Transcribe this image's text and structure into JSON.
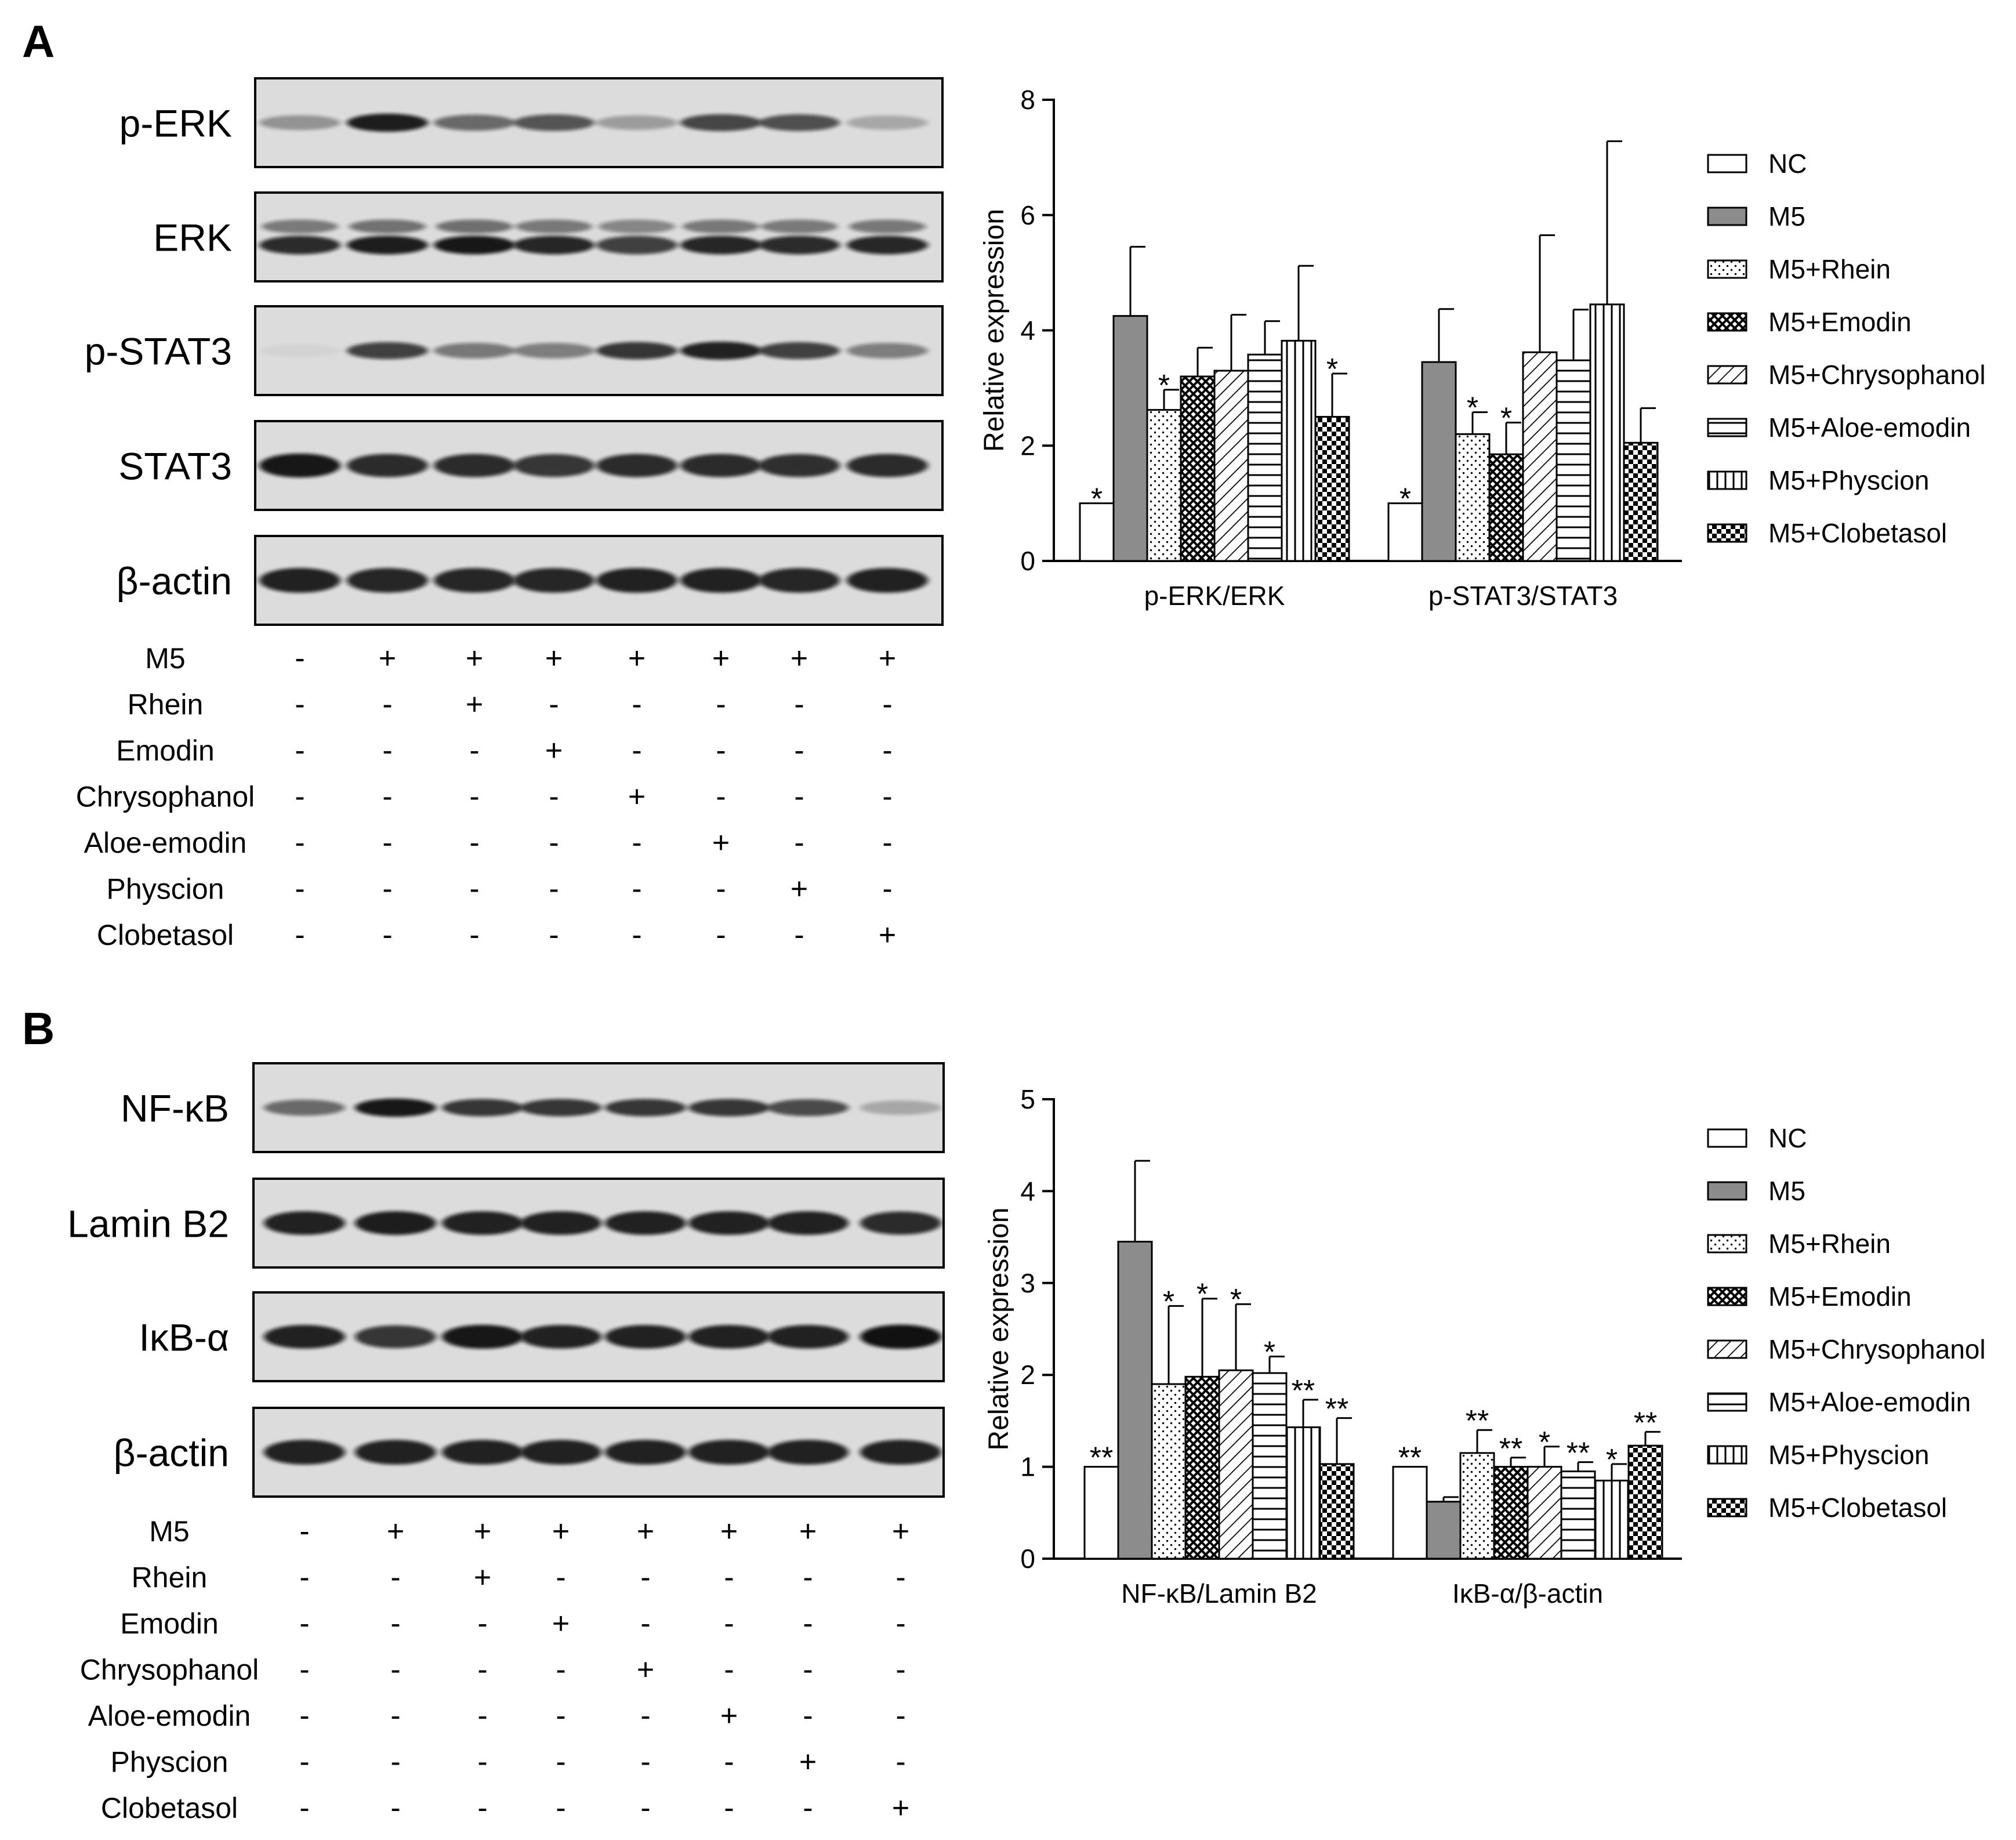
{
  "panels": [
    {
      "letter": "A",
      "blots": [
        "p-ERK",
        "ERK",
        "p-STAT3",
        "STAT3",
        "β-actin"
      ],
      "bands": [
        [
          0.35,
          0.92,
          0.55,
          0.65,
          0.3,
          0.72,
          0.68,
          0.25
        ],
        [
          0.85,
          0.92,
          0.95,
          0.88,
          0.75,
          0.88,
          0.85,
          0.87
        ],
        [
          0.04,
          0.75,
          0.48,
          0.45,
          0.8,
          0.9,
          0.75,
          0.45
        ],
        [
          0.95,
          0.85,
          0.85,
          0.8,
          0.85,
          0.85,
          0.83,
          0.85
        ],
        [
          0.9,
          0.88,
          0.88,
          0.88,
          0.9,
          0.9,
          0.88,
          0.9
        ]
      ],
      "treatments": [
        {
          "label": "M5",
          "signs": [
            "-",
            "+",
            "+",
            "+",
            "+",
            "+",
            "+",
            "+"
          ]
        },
        {
          "label": "Rhein",
          "signs": [
            "-",
            "-",
            "+",
            "-",
            "-",
            "-",
            "-",
            "-"
          ]
        },
        {
          "label": "Emodin",
          "signs": [
            "-",
            "-",
            "-",
            "+",
            "-",
            "-",
            "-",
            "-"
          ]
        },
        {
          "label": "Chrysophanol",
          "signs": [
            "-",
            "-",
            "-",
            "-",
            "+",
            "-",
            "-",
            "-"
          ]
        },
        {
          "label": "Aloe-emodin",
          "signs": [
            "-",
            "-",
            "-",
            "-",
            "-",
            "+",
            "-",
            "-"
          ]
        },
        {
          "label": "Physcion",
          "signs": [
            "-",
            "-",
            "-",
            "-",
            "-",
            "-",
            "+",
            "-"
          ]
        },
        {
          "label": "Clobetasol",
          "signs": [
            "-",
            "-",
            "-",
            "-",
            "-",
            "-",
            "-",
            "+"
          ]
        }
      ]
    },
    {
      "letter": "B",
      "blots": [
        "NF-κB",
        "Lamin B2",
        "IκB-α",
        "β-actin"
      ],
      "bands": [
        [
          0.55,
          0.95,
          0.8,
          0.8,
          0.8,
          0.8,
          0.7,
          0.25
        ],
        [
          0.9,
          0.92,
          0.9,
          0.9,
          0.9,
          0.9,
          0.9,
          0.85
        ],
        [
          0.9,
          0.8,
          0.95,
          0.9,
          0.9,
          0.9,
          0.9,
          0.98
        ],
        [
          0.9,
          0.9,
          0.9,
          0.9,
          0.9,
          0.9,
          0.9,
          0.9
        ]
      ],
      "treatments": [
        {
          "label": "M5",
          "signs": [
            "-",
            "+",
            "+",
            "+",
            "+",
            "+",
            "+",
            "+"
          ]
        },
        {
          "label": "Rhein",
          "signs": [
            "-",
            "-",
            "+",
            "-",
            "-",
            "-",
            "-",
            "-"
          ]
        },
        {
          "label": "Emodin",
          "signs": [
            "-",
            "-",
            "-",
            "+",
            "-",
            "-",
            "-",
            "-"
          ]
        },
        {
          "label": "Chrysophanol",
          "signs": [
            "-",
            "-",
            "-",
            "-",
            "+",
            "-",
            "-",
            "-"
          ]
        },
        {
          "label": "Aloe-emodin",
          "signs": [
            "-",
            "-",
            "-",
            "-",
            "-",
            "+",
            "-",
            "-"
          ]
        },
        {
          "label": "Physcion",
          "signs": [
            "-",
            "-",
            "-",
            "-",
            "-",
            "-",
            "+",
            "-"
          ]
        },
        {
          "label": "Clobetasol",
          "signs": [
            "-",
            "-",
            "-",
            "-",
            "-",
            "-",
            "-",
            "+"
          ]
        }
      ]
    }
  ],
  "chart_data": [
    {
      "type": "bar",
      "title": "",
      "xlabel": "",
      "ylabel": "Relative expression",
      "ylim": [
        0,
        8
      ],
      "yticks": [
        "0",
        "2",
        "4",
        "6",
        "8"
      ],
      "categories": [
        "p-ERK/ERK",
        "p-STAT3/STAT3"
      ],
      "legend_position": "right",
      "series": [
        {
          "name": "NC",
          "pattern": "white",
          "values": [
            1.0,
            1.0
          ],
          "errors": [
            0,
            0
          ],
          "sig": [
            "*",
            "*"
          ]
        },
        {
          "name": "M5",
          "pattern": "gray",
          "values": [
            4.25,
            3.45
          ],
          "errors": [
            1.2,
            0.92
          ],
          "sig": [
            "",
            ""
          ]
        },
        {
          "name": "M5+Rhein",
          "pattern": "dots",
          "values": [
            2.62,
            2.2
          ],
          "errors": [
            0.35,
            0.38
          ],
          "sig": [
            "*",
            "*"
          ]
        },
        {
          "name": "M5+Emodin",
          "pattern": "crosshatch",
          "values": [
            3.2,
            1.85
          ],
          "errors": [
            0.5,
            0.55
          ],
          "sig": [
            "",
            "*"
          ]
        },
        {
          "name": "M5+Chrysophanol",
          "pattern": "diagonal",
          "values": [
            3.3,
            3.62
          ],
          "errors": [
            0.97,
            2.03
          ],
          "sig": [
            "",
            ""
          ]
        },
        {
          "name": "M5+Aloe-emodin",
          "pattern": "horizontal",
          "values": [
            3.58,
            3.48
          ],
          "errors": [
            0.58,
            0.88
          ],
          "sig": [
            "",
            ""
          ]
        },
        {
          "name": "M5+Physcion",
          "pattern": "vertical",
          "values": [
            3.82,
            4.45
          ],
          "errors": [
            1.3,
            2.83
          ],
          "sig": [
            "",
            ""
          ]
        },
        {
          "name": "M5+Clobetasol",
          "pattern": "checker",
          "values": [
            2.5,
            2.05
          ],
          "errors": [
            0.75,
            0.6
          ],
          "sig": [
            "*",
            ""
          ]
        }
      ]
    },
    {
      "type": "bar",
      "title": "",
      "xlabel": "",
      "ylabel": "Relative expression",
      "ylim": [
        0,
        5
      ],
      "yticks": [
        "0",
        "1",
        "2",
        "3",
        "4",
        "5"
      ],
      "categories": [
        "NF-κB/Lamin B2",
        "IκB-α/β-actin"
      ],
      "legend_position": "right",
      "series": [
        {
          "name": "NC",
          "pattern": "white",
          "values": [
            1.0,
            1.0
          ],
          "errors": [
            0,
            0
          ],
          "sig": [
            "**",
            "**"
          ]
        },
        {
          "name": "M5",
          "pattern": "gray",
          "values": [
            3.45,
            0.62
          ],
          "errors": [
            0.88,
            0.05
          ],
          "sig": [
            "",
            ""
          ]
        },
        {
          "name": "M5+Rhein",
          "pattern": "dots",
          "values": [
            1.9,
            1.15
          ],
          "errors": [
            0.85,
            0.25
          ],
          "sig": [
            "*",
            "**"
          ]
        },
        {
          "name": "M5+Emodin",
          "pattern": "crosshatch",
          "values": [
            1.98,
            1.0
          ],
          "errors": [
            0.85,
            0.1
          ],
          "sig": [
            "*",
            "**"
          ]
        },
        {
          "name": "M5+Chrysophanol",
          "pattern": "diagonal",
          "values": [
            2.05,
            1.0
          ],
          "errors": [
            0.72,
            0.22
          ],
          "sig": [
            "*",
            "*"
          ]
        },
        {
          "name": "M5+Aloe-emodin",
          "pattern": "horizontal",
          "values": [
            2.02,
            0.95
          ],
          "errors": [
            0.18,
            0.1
          ],
          "sig": [
            "*",
            "**"
          ]
        },
        {
          "name": "M5+Physcion",
          "pattern": "vertical",
          "values": [
            1.43,
            0.85
          ],
          "errors": [
            0.3,
            0.18
          ],
          "sig": [
            "**",
            "*"
          ]
        },
        {
          "name": "M5+Clobetasol",
          "pattern": "checker",
          "values": [
            1.03,
            1.23
          ],
          "errors": [
            0.5,
            0.15
          ],
          "sig": [
            "**",
            "**"
          ]
        }
      ]
    }
  ]
}
